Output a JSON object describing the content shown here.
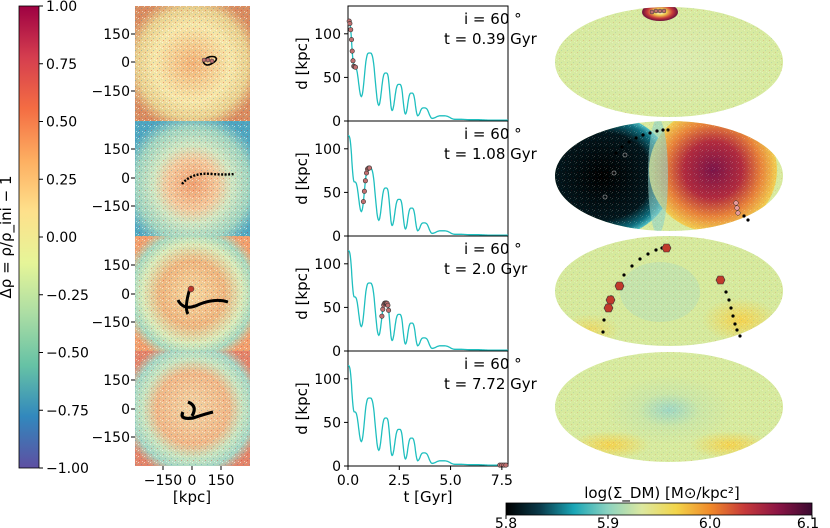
{
  "colors": {
    "rho_cmap": [
      "#5e4fa2",
      "#3288bd",
      "#66c2a5",
      "#abdda4",
      "#e6f598",
      "#fee08b",
      "#fdae61",
      "#f46d43",
      "#d53e4f",
      "#9e0142"
    ],
    "dm_cmap": [
      "#000000",
      "#0a3a4a",
      "#1aa6b6",
      "#8cd3c0",
      "#dce8a0",
      "#f2d54a",
      "#f08a2a",
      "#c73a3a",
      "#8b1545",
      "#3a0a30"
    ],
    "orbit_line": "#1fbfbf",
    "marker_edge": "#333333",
    "marker_fill": "#c07070"
  },
  "colorbar_left": {
    "label": "Δρ = ρ/ρ_ini − 1",
    "ticks": [
      "1.00",
      "0.75",
      "0.50",
      "0.25",
      "0.00",
      "−0.25",
      "−0.50",
      "−0.75",
      "−1.00"
    ]
  },
  "colorbar_bottom": {
    "label": "log(Σ_DM) [M⊙/kpc²]",
    "ticks": [
      "5.8",
      "5.9",
      "6.0",
      "6.1"
    ]
  },
  "density_panels": {
    "y_ticks": [
      "150",
      "0",
      "−150"
    ],
    "x_ticks": [
      "−150",
      "0",
      "150"
    ],
    "x_label": "[kpc]"
  },
  "chart_data": {
    "type": "line",
    "xlabel": "t [Gyr]",
    "ylabel": "d [kpc]",
    "xlim": [
      0,
      7.8
    ],
    "ylim": [
      0,
      125
    ],
    "x_ticks": [
      "0.0",
      "2.5",
      "5.0",
      "7.5"
    ],
    "y_ticks": [
      "0",
      "50",
      "100"
    ],
    "series": [
      {
        "name": "orbit distance",
        "t": [
          0.0,
          0.3,
          0.65,
          1.05,
          1.5,
          1.85,
          2.15,
          2.5,
          2.8,
          3.1,
          3.4,
          3.7,
          4.1,
          4.6,
          5.2,
          6.0,
          7.0,
          7.8
        ],
        "d": [
          115,
          62,
          28,
          78,
          18,
          55,
          12,
          42,
          8,
          32,
          6,
          15,
          3,
          6,
          2,
          1.5,
          1,
          1
        ]
      }
    ],
    "panels": [
      {
        "inclination": "i = 60 °",
        "time": "t = 0.39 Gyr",
        "t_current": 0.39
      },
      {
        "inclination": "i = 60 °",
        "time": "t = 1.08 Gyr",
        "t_current": 1.08
      },
      {
        "inclination": "i = 60 °",
        "time": "t = 2.0 Gyr",
        "t_current": 2.0
      },
      {
        "inclination": "i = 60 °",
        "time": "t = 7.72 Gyr",
        "t_current": 7.72
      }
    ]
  }
}
